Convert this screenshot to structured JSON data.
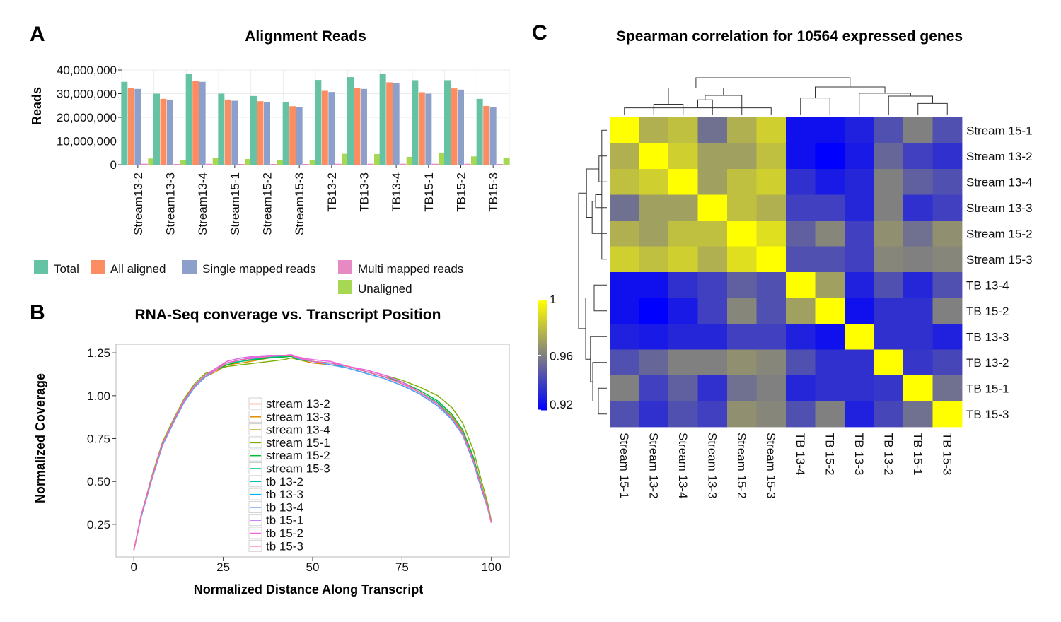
{
  "panel_labels": {
    "a": "A",
    "b": "B",
    "c": "C"
  },
  "chart_data": [
    {
      "type": "bar",
      "title": "Alignment Reads",
      "xlabel": "",
      "ylabel": "Reads",
      "ylim": [
        0,
        40000000
      ],
      "yticks": [
        0,
        10000000,
        20000000,
        30000000,
        40000000
      ],
      "ytick_labels": [
        "0",
        "10,000,000",
        "20,000,000",
        "30,000,000",
        "40,000,000"
      ],
      "grid": true,
      "categories": [
        "Stream13-2",
        "Stream13-3",
        "Stream13-4",
        "Stream15-1",
        "Stream15-2",
        "Stream15-3",
        "TB13-2",
        "TB13-3",
        "TB13-4",
        "TB15-1",
        "TB15-2",
        "TB15-3"
      ],
      "series": [
        {
          "name": "Total",
          "color": "#66c2a5",
          "values": [
            35000000,
            30000000,
            38500000,
            30000000,
            29000000,
            26500000,
            35800000,
            37000000,
            38300000,
            35700000,
            35700000,
            27800000
          ]
        },
        {
          "name": "All aligned",
          "color": "#fc8d62",
          "values": [
            32500000,
            27800000,
            35500000,
            27500000,
            26800000,
            24700000,
            31200000,
            32400000,
            34800000,
            30600000,
            32200000,
            24800000
          ]
        },
        {
          "name": "Single mapped reads",
          "color": "#8da0cb",
          "values": [
            32000000,
            27500000,
            35000000,
            27000000,
            26500000,
            24300000,
            30700000,
            32000000,
            34500000,
            30000000,
            31700000,
            24400000
          ]
        },
        {
          "name": "Multi mapped reads",
          "color": "#e78ac3",
          "values": [
            400000,
            300000,
            400000,
            300000,
            300000,
            300000,
            400000,
            400000,
            400000,
            400000,
            400000,
            300000
          ]
        },
        {
          "name": "Unaligned",
          "color": "#a6d854",
          "values": [
            2600000,
            2100000,
            3000000,
            2400000,
            2100000,
            1800000,
            4600000,
            4500000,
            3300000,
            5100000,
            3500000,
            3000000
          ]
        }
      ],
      "legend_position": "bottom"
    },
    {
      "type": "line",
      "title": "RNA-Seq converage vs. Transcript Position",
      "xlabel": "Normalized Distance Along Transcript",
      "ylabel": "Normalized Coverage",
      "xlim": [
        -5,
        105
      ],
      "ylim": [
        0.06,
        1.3
      ],
      "xticks": [
        0,
        25,
        50,
        75,
        100
      ],
      "xtick_labels": [
        "0",
        "25",
        "50",
        "75",
        "100"
      ],
      "yticks": [
        0.25,
        0.5,
        0.75,
        1.0,
        1.25
      ],
      "ytick_labels": [
        "0.25",
        "0.50",
        "0.75",
        "1.00",
        "1.25"
      ],
      "x": [
        0,
        2,
        5,
        8,
        11,
        14,
        17,
        20,
        23,
        26,
        30,
        34,
        38,
        42,
        44,
        46,
        50,
        55,
        60,
        65,
        70,
        75,
        80,
        85,
        89,
        92,
        95,
        97,
        99,
        100
      ],
      "series": [
        {
          "name": "stream 13-2",
          "color": "#f8766d",
          "values": [
            0.1,
            0.3,
            0.52,
            0.72,
            0.85,
            0.97,
            1.06,
            1.12,
            1.15,
            1.19,
            1.2,
            1.215,
            1.225,
            1.23,
            1.235,
            1.22,
            1.2,
            1.19,
            1.17,
            1.14,
            1.11,
            1.07,
            1.02,
            0.95,
            0.87,
            0.78,
            0.62,
            0.48,
            0.35,
            0.26
          ]
        },
        {
          "name": "stream 13-3",
          "color": "#de8c00",
          "values": [
            0.1,
            0.29,
            0.51,
            0.71,
            0.84,
            0.96,
            1.05,
            1.11,
            1.14,
            1.18,
            1.19,
            1.205,
            1.22,
            1.23,
            1.23,
            1.21,
            1.19,
            1.18,
            1.16,
            1.13,
            1.1,
            1.06,
            1.01,
            0.94,
            0.86,
            0.77,
            0.61,
            0.47,
            0.34,
            0.26
          ]
        },
        {
          "name": "stream 13-4",
          "color": "#b79f00",
          "values": [
            0.1,
            0.3,
            0.52,
            0.72,
            0.85,
            0.97,
            1.06,
            1.12,
            1.16,
            1.19,
            1.21,
            1.22,
            1.23,
            1.235,
            1.235,
            1.215,
            1.2,
            1.19,
            1.17,
            1.14,
            1.11,
            1.07,
            1.02,
            0.96,
            0.88,
            0.79,
            0.63,
            0.48,
            0.35,
            0.26
          ]
        },
        {
          "name": "stream 15-1",
          "color": "#7cae00",
          "values": [
            0.1,
            0.3,
            0.53,
            0.73,
            0.86,
            0.98,
            1.07,
            1.13,
            1.15,
            1.17,
            1.18,
            1.19,
            1.2,
            1.21,
            1.22,
            1.21,
            1.2,
            1.19,
            1.17,
            1.15,
            1.12,
            1.09,
            1.05,
            1.0,
            0.93,
            0.84,
            0.68,
            0.52,
            0.37,
            0.27
          ]
        },
        {
          "name": "stream 15-2",
          "color": "#00ba38",
          "values": [
            0.1,
            0.3,
            0.52,
            0.72,
            0.85,
            0.97,
            1.06,
            1.12,
            1.15,
            1.18,
            1.2,
            1.21,
            1.22,
            1.225,
            1.23,
            1.21,
            1.2,
            1.19,
            1.17,
            1.14,
            1.11,
            1.08,
            1.03,
            0.97,
            0.89,
            0.8,
            0.64,
            0.49,
            0.35,
            0.26
          ]
        },
        {
          "name": "stream 15-3",
          "color": "#00c08b",
          "values": [
            0.1,
            0.3,
            0.52,
            0.72,
            0.85,
            0.97,
            1.06,
            1.12,
            1.15,
            1.19,
            1.2,
            1.215,
            1.225,
            1.23,
            1.235,
            1.215,
            1.2,
            1.19,
            1.17,
            1.14,
            1.11,
            1.07,
            1.02,
            0.96,
            0.87,
            0.78,
            0.62,
            0.48,
            0.35,
            0.26
          ]
        },
        {
          "name": "tb 13-2",
          "color": "#00bfc4",
          "values": [
            0.1,
            0.3,
            0.52,
            0.72,
            0.85,
            0.97,
            1.06,
            1.12,
            1.16,
            1.2,
            1.22,
            1.23,
            1.235,
            1.235,
            1.235,
            1.22,
            1.2,
            1.19,
            1.16,
            1.13,
            1.1,
            1.06,
            1.01,
            0.94,
            0.86,
            0.77,
            0.61,
            0.47,
            0.34,
            0.26
          ]
        },
        {
          "name": "tb 13-3",
          "color": "#00b4f0",
          "values": [
            0.1,
            0.29,
            0.51,
            0.71,
            0.84,
            0.96,
            1.05,
            1.11,
            1.15,
            1.19,
            1.21,
            1.225,
            1.23,
            1.235,
            1.235,
            1.215,
            1.2,
            1.18,
            1.16,
            1.13,
            1.1,
            1.06,
            1.01,
            0.94,
            0.86,
            0.77,
            0.61,
            0.47,
            0.34,
            0.26
          ]
        },
        {
          "name": "tb 13-4",
          "color": "#619cff",
          "values": [
            0.1,
            0.29,
            0.51,
            0.71,
            0.84,
            0.96,
            1.05,
            1.11,
            1.15,
            1.19,
            1.21,
            1.22,
            1.23,
            1.235,
            1.235,
            1.215,
            1.2,
            1.18,
            1.16,
            1.13,
            1.1,
            1.06,
            1.01,
            0.94,
            0.86,
            0.77,
            0.61,
            0.47,
            0.34,
            0.26
          ]
        },
        {
          "name": "tb 15-1",
          "color": "#c77cff",
          "values": [
            0.1,
            0.3,
            0.52,
            0.72,
            0.85,
            0.97,
            1.06,
            1.12,
            1.16,
            1.2,
            1.22,
            1.225,
            1.23,
            1.235,
            1.235,
            1.22,
            1.21,
            1.2,
            1.17,
            1.15,
            1.12,
            1.08,
            1.02,
            0.95,
            0.87,
            0.78,
            0.62,
            0.48,
            0.35,
            0.26
          ]
        },
        {
          "name": "tb 15-2",
          "color": "#f564e3",
          "values": [
            0.1,
            0.3,
            0.52,
            0.72,
            0.85,
            0.97,
            1.06,
            1.12,
            1.16,
            1.2,
            1.22,
            1.23,
            1.235,
            1.235,
            1.24,
            1.225,
            1.21,
            1.2,
            1.17,
            1.15,
            1.12,
            1.08,
            1.02,
            0.95,
            0.87,
            0.78,
            0.62,
            0.48,
            0.35,
            0.26
          ]
        },
        {
          "name": "tb 15-3",
          "color": "#ff64b0",
          "values": [
            0.1,
            0.3,
            0.52,
            0.72,
            0.85,
            0.97,
            1.06,
            1.12,
            1.15,
            1.19,
            1.21,
            1.22,
            1.23,
            1.235,
            1.235,
            1.22,
            1.2,
            1.19,
            1.17,
            1.14,
            1.11,
            1.07,
            1.02,
            0.95,
            0.87,
            0.78,
            0.62,
            0.48,
            0.35,
            0.26
          ]
        }
      ],
      "legend_position": "center"
    },
    {
      "type": "heatmap",
      "title": "Spearman correlation for 10564 expressed genes",
      "rows": [
        "Stream 15-1",
        "Stream 13-2",
        "Stream 13-4",
        "Stream 13-3",
        "Stream 15-2",
        "Stream 15-3",
        "TB 13-4",
        "TB 15-2",
        "TB 13-3",
        "TB 13-2",
        "TB 15-1",
        "TB 15-3"
      ],
      "columns": [
        "Stream 15-1",
        "Stream 13-2",
        "Stream 13-4",
        "Stream 13-3",
        "Stream 15-2",
        "Stream 15-3",
        "TB 13-4",
        "TB 15-2",
        "TB 13-3",
        "TB 13-2",
        "TB 15-1",
        "TB 15-3"
      ],
      "values": [
        [
          1.0,
          0.975,
          0.98,
          0.955,
          0.975,
          0.985,
          0.925,
          0.925,
          0.93,
          0.945,
          0.96,
          0.945
        ],
        [
          0.975,
          1.0,
          0.985,
          0.97,
          0.97,
          0.98,
          0.925,
          0.92,
          0.928,
          0.952,
          0.94,
          0.935
        ],
        [
          0.98,
          0.985,
          1.0,
          0.97,
          0.98,
          0.985,
          0.935,
          0.928,
          0.932,
          0.96,
          0.95,
          0.945
        ],
        [
          0.955,
          0.97,
          0.97,
          1.0,
          0.98,
          0.975,
          0.94,
          0.94,
          0.932,
          0.96,
          0.935,
          0.94
        ],
        [
          0.975,
          0.97,
          0.98,
          0.98,
          1.0,
          0.99,
          0.95,
          0.962,
          0.94,
          0.965,
          0.955,
          0.965
        ],
        [
          0.985,
          0.98,
          0.985,
          0.975,
          0.99,
          1.0,
          0.945,
          0.945,
          0.94,
          0.962,
          0.96,
          0.962
        ],
        [
          0.925,
          0.925,
          0.935,
          0.94,
          0.95,
          0.945,
          1.0,
          0.97,
          0.93,
          0.945,
          0.932,
          0.945
        ],
        [
          0.925,
          0.92,
          0.928,
          0.94,
          0.962,
          0.945,
          0.97,
          1.0,
          0.925,
          0.935,
          0.935,
          0.96
        ],
        [
          0.93,
          0.928,
          0.932,
          0.932,
          0.94,
          0.94,
          0.93,
          0.925,
          1.0,
          0.935,
          0.935,
          0.93
        ],
        [
          0.945,
          0.952,
          0.96,
          0.96,
          0.965,
          0.962,
          0.945,
          0.935,
          0.935,
          1.0,
          0.937,
          0.942
        ],
        [
          0.96,
          0.94,
          0.95,
          0.935,
          0.955,
          0.96,
          0.932,
          0.935,
          0.935,
          0.937,
          1.0,
          0.955
        ],
        [
          0.945,
          0.935,
          0.945,
          0.94,
          0.965,
          0.962,
          0.945,
          0.96,
          0.93,
          0.942,
          0.955,
          1.0
        ]
      ],
      "color_scale": {
        "min": 0.92,
        "mid": 0.96,
        "max": 1,
        "low_color": "#0000ff",
        "mid_color": "#808080",
        "high_color": "#ffff00",
        "tick_labels": [
          "0.92",
          "0.96",
          "1"
        ]
      },
      "dendrogram": {
        "ordered_leaves": [
          "Stream 15-1",
          "Stream 13-2",
          "Stream 13-4",
          "Stream 13-3",
          "Stream 15-2",
          "Stream 15-3",
          "TB 13-4",
          "TB 15-2",
          "TB 13-3",
          "TB 13-2",
          "TB 15-1",
          "TB 15-3"
        ],
        "merges": [
          [
            0,
            5,
            0.18
          ],
          [
            1,
            2,
            0.28
          ],
          [
            12,
            3,
            0.4
          ],
          [
            14,
            4,
            0.52
          ],
          [
            6,
            7,
            0.45
          ],
          [
            10,
            11,
            0.3
          ],
          [
            9,
            17,
            0.5
          ],
          [
            8,
            18,
            0.58
          ],
          [
            13,
            15,
            0.72
          ],
          [
            16,
            19,
            0.75
          ],
          [
            20,
            21,
            1.0
          ]
        ]
      }
    }
  ]
}
